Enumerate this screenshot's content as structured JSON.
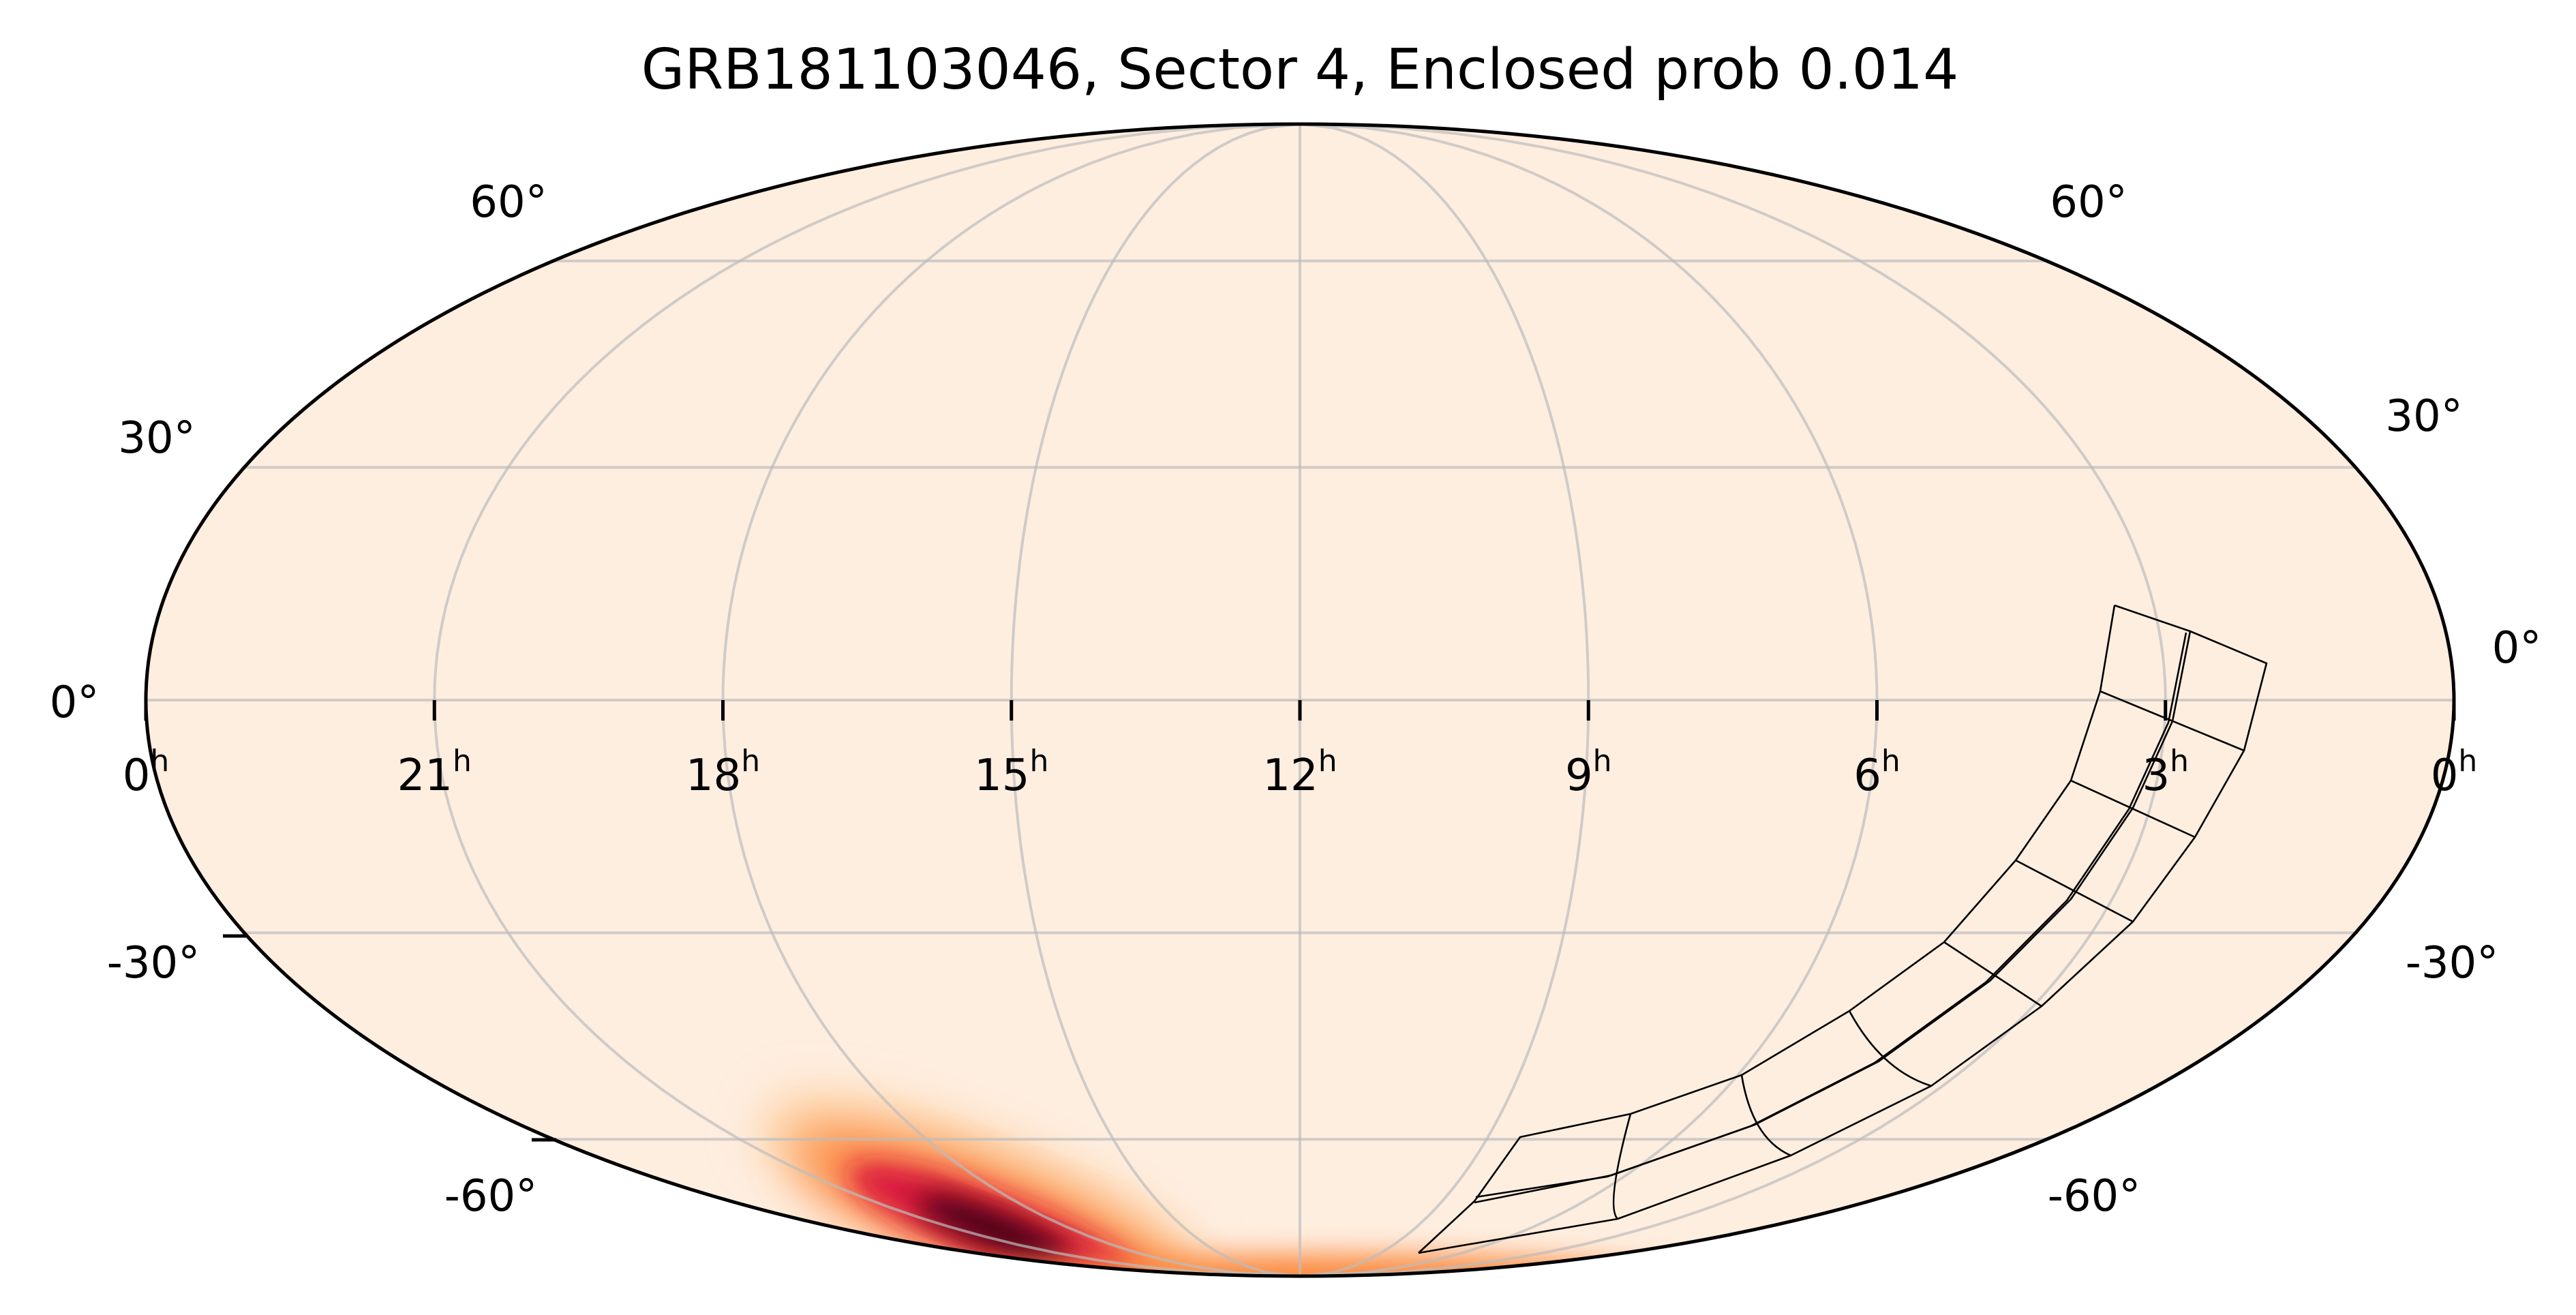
{
  "chart_data": {
    "type": "heatmap",
    "projection": "mollweide",
    "title": "GRB181103046, Sector 4, Enclosed prob 0.014",
    "ra_ticks_hours": [
      0,
      21,
      18,
      15,
      12,
      9,
      6,
      3,
      0
    ],
    "ra_tick_labels": [
      "0",
      "21",
      "18",
      "15",
      "12",
      "9",
      "6",
      "3",
      "0"
    ],
    "ra_unit_suffix": "h",
    "dec_ticks_deg": [
      60,
      30,
      0,
      -30,
      -60
    ],
    "dec_tick_labels": [
      "60°",
      "30°",
      "0°",
      "-30°",
      "-60°"
    ],
    "grid": true,
    "background_color": "#feeee0",
    "colormap": "hot_r-like",
    "probability_peak": {
      "ra_hours": 19.6,
      "dec_deg": -75
    },
    "overlay": "TESS Sector 4 camera/CCD footprints",
    "enclosed_prob": 0.014
  }
}
